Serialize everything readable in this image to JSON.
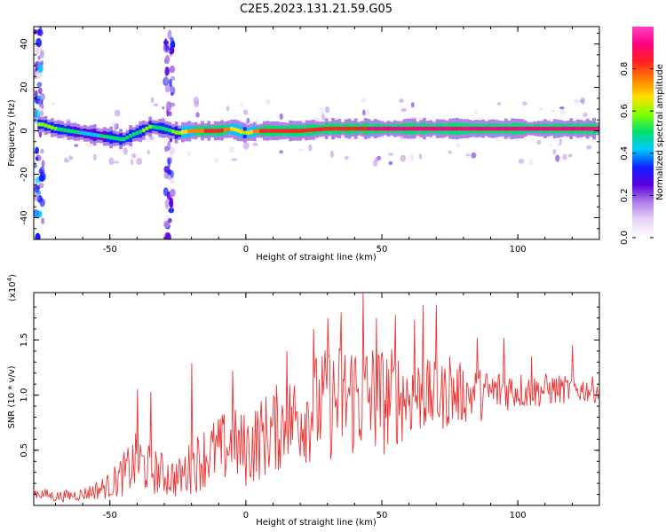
{
  "figure_title": "C2E5.2023.131.21.59.G05",
  "chart_data": [
    {
      "type": "heatmap",
      "xlabel": "Height of straight line (km)",
      "ylabel": "Frequency (Hz)",
      "xlim": [
        -78,
        130
      ],
      "ylim": [
        -50,
        48
      ],
      "xticks": [
        -50,
        0,
        50,
        100
      ],
      "yticks": [
        -40,
        -20,
        0,
        20,
        40
      ],
      "ytick_labels": [
        "-40",
        "-20",
        "0",
        "20",
        "40"
      ],
      "colorbar": {
        "label": "Normalized spectral amplitude",
        "range": [
          0,
          1
        ],
        "ticks": [
          0.0,
          0.2,
          0.4,
          0.6,
          0.8
        ],
        "tick_labels": [
          "0.0",
          "0.2",
          "0.4",
          "0.6",
          "0.8"
        ],
        "colors": [
          "#ffffff",
          "#e8d5f5",
          "#b080e8",
          "#5a00e0",
          "#1020ff",
          "#00c8ff",
          "#00e070",
          "#7fff00",
          "#ffe000",
          "#ff8000",
          "#ff2020",
          "#ff0080",
          "#ff40c0"
        ]
      },
      "ridge": {
        "x": [
          -75,
          -70,
          -65,
          -60,
          -55,
          -50,
          -45,
          -42,
          -38,
          -35,
          -30,
          -25,
          -20,
          -10,
          -5,
          0,
          5,
          10,
          20,
          30,
          40,
          50,
          60,
          70,
          80,
          90,
          100,
          110,
          120,
          130
        ],
        "freq": [
          3,
          1,
          0,
          -1,
          -2,
          -3,
          -4,
          -2,
          0,
          2,
          1,
          -1,
          0,
          0,
          1,
          -1,
          0,
          0,
          0,
          1,
          1,
          1,
          1,
          1,
          1,
          1,
          1,
          1,
          1,
          1
        ],
        "amplitude": [
          0.6,
          0.55,
          0.5,
          0.45,
          0.45,
          0.5,
          0.5,
          0.5,
          0.55,
          0.55,
          0.5,
          0.6,
          0.75,
          0.85,
          0.7,
          0.6,
          0.8,
          0.85,
          0.8,
          0.85,
          0.85,
          0.9,
          0.9,
          0.9,
          0.9,
          0.9,
          0.9,
          0.9,
          0.9,
          0.9
        ]
      },
      "bands": [
        {
          "x": -76,
          "freq_range": [
            -50,
            48
          ],
          "amplitude": 0.35
        },
        {
          "x": -28,
          "freq_range": [
            -50,
            48
          ],
          "amplitude": 0.3
        }
      ]
    },
    {
      "type": "line",
      "xlabel": "Height of straight line (km)",
      "ylabel": "SNR (10 * v/v)",
      "scale_label": "(x10",
      "scale_exp": "4",
      "scale_close": ")",
      "xlim": [
        -78,
        130
      ],
      "ylim": [
        0,
        1.93
      ],
      "xticks": [
        -50,
        0,
        50,
        100
      ],
      "yticks": [
        0.5,
        1.0,
        1.5
      ],
      "ytick_labels": [
        "0.5",
        "1.0",
        "1.5"
      ],
      "line_color": "#ee3333",
      "series": [
        {
          "x": [
            -78,
            -70,
            -60,
            -50,
            -45,
            -40,
            -35,
            -30,
            -25,
            -20,
            -15,
            -10,
            -5,
            0,
            5,
            10,
            15,
            20,
            25,
            30,
            35,
            40,
            45,
            50,
            55,
            60,
            65,
            70,
            75,
            80,
            85,
            90,
            95,
            100,
            105,
            110,
            115,
            120,
            125,
            130
          ],
          "mean": [
            0.12,
            0.08,
            0.1,
            0.18,
            0.28,
            0.4,
            0.32,
            0.28,
            0.24,
            0.35,
            0.45,
            0.5,
            0.55,
            0.5,
            0.6,
            0.68,
            0.75,
            0.82,
            0.88,
            0.92,
            0.95,
            1.0,
            0.98,
            0.95,
            0.98,
            1.0,
            1.0,
            0.98,
            1.0,
            1.02,
            1.0,
            1.02,
            1.05,
            1.05,
            1.03,
            1.05,
            1.05,
            1.05,
            1.05,
            1.05
          ],
          "spread": [
            0.06,
            0.05,
            0.06,
            0.12,
            0.2,
            0.28,
            0.22,
            0.2,
            0.18,
            0.25,
            0.3,
            0.32,
            0.35,
            0.35,
            0.38,
            0.4,
            0.42,
            0.45,
            0.5,
            0.52,
            0.55,
            0.58,
            0.55,
            0.52,
            0.45,
            0.4,
            0.35,
            0.32,
            0.3,
            0.28,
            0.25,
            0.22,
            0.2,
            0.18,
            0.16,
            0.15,
            0.14,
            0.12,
            0.12,
            0.12
          ],
          "peaks": [
            [
              -40,
              1.05
            ],
            [
              -35,
              1.03
            ],
            [
              -20,
              1.29
            ],
            [
              -5,
              1.22
            ],
            [
              15,
              1.4
            ],
            [
              25,
              1.6
            ],
            [
              30,
              1.7
            ],
            [
              35,
              1.75
            ],
            [
              43,
              1.93
            ],
            [
              48,
              1.7
            ],
            [
              55,
              1.73
            ],
            [
              62,
              1.68
            ],
            [
              65,
              1.82
            ],
            [
              70,
              1.82
            ],
            [
              75,
              1.35
            ],
            [
              85,
              1.52
            ],
            [
              95,
              1.52
            ],
            [
              105,
              1.35
            ],
            [
              120,
              1.45
            ]
          ]
        }
      ]
    }
  ]
}
